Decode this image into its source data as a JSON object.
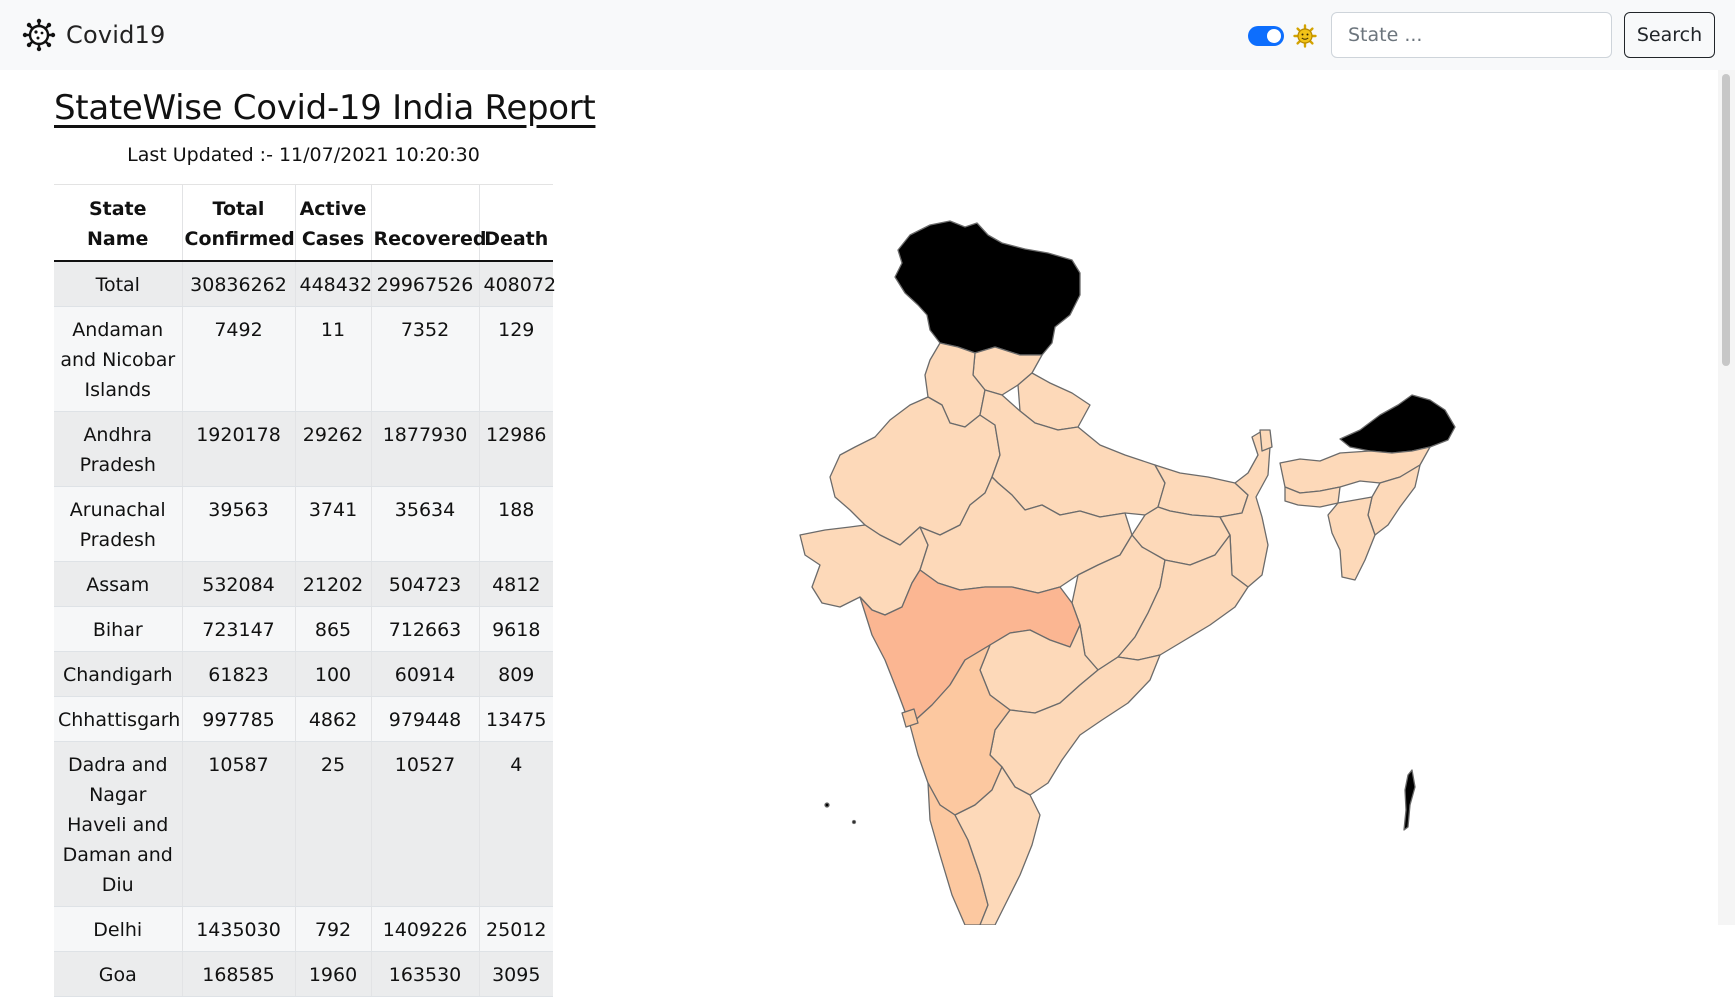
{
  "navbar": {
    "brand_text": "Covid19",
    "brand_icon": "virus-icon",
    "theme_toggle_on": true,
    "theme_icon": "sun-icon",
    "search_placeholder": "State ...",
    "search_value": "",
    "search_button_label": "Search"
  },
  "report": {
    "title": "StateWise Covid-19 India Report",
    "last_updated": "Last Updated :- 11/07/2021 10:20:30",
    "headers": [
      "State Name",
      "Total Confirmed",
      "Active Cases",
      "Recovered",
      "Death"
    ],
    "rows": [
      [
        "Total",
        "30836262",
        "448432",
        "29967526",
        "408072"
      ],
      [
        "Andaman and Nicobar Islands",
        "7492",
        "11",
        "7352",
        "129"
      ],
      [
        "Andhra Pradesh",
        "1920178",
        "29262",
        "1877930",
        "12986"
      ],
      [
        "Arunachal Pradesh",
        "39563",
        "3741",
        "35634",
        "188"
      ],
      [
        "Assam",
        "532084",
        "21202",
        "504723",
        "4812"
      ],
      [
        "Bihar",
        "723147",
        "865",
        "712663",
        "9618"
      ],
      [
        "Chandigarh",
        "61823",
        "100",
        "60914",
        "809"
      ],
      [
        "Chhattisgarh",
        "997785",
        "4862",
        "979448",
        "13475"
      ],
      [
        "Dadra and Nagar Haveli and Daman and Diu",
        "10587",
        "25",
        "10527",
        "4"
      ],
      [
        "Delhi",
        "1435030",
        "792",
        "1409226",
        "25012"
      ],
      [
        "Goa",
        "168585",
        "1960",
        "163530",
        "3095"
      ]
    ]
  },
  "map": {
    "colors": {
      "no_data": "#000000",
      "low": "#fdd9b9",
      "medium": "#fcc8a0",
      "high": "#fbb692",
      "border": "#6b6b6b"
    }
  },
  "colors": {
    "accent": "#0d6efd",
    "navbar_bg": "#f8f9fa",
    "table_stripe": "#ebeced"
  }
}
